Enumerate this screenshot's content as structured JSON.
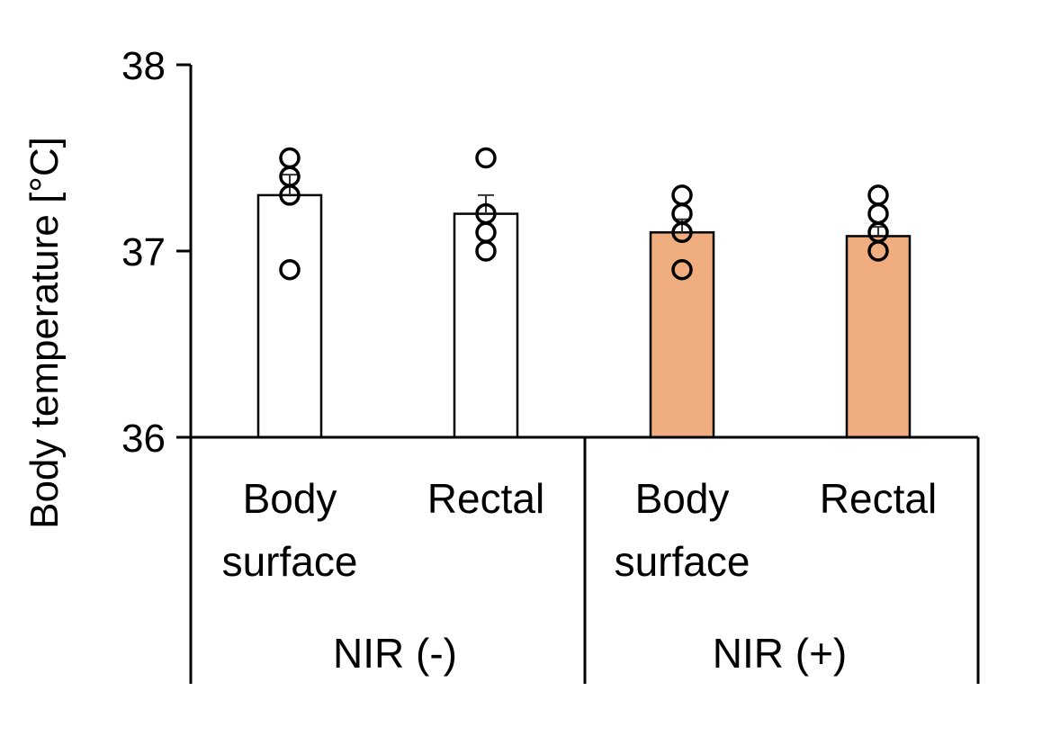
{
  "chart_data": {
    "type": "bar",
    "title": "",
    "ylabel": "Body temperature [°C]",
    "ylim": [
      36,
      38
    ],
    "yticks": [
      "36",
      "37",
      "38"
    ],
    "grid": false,
    "groups": [
      {
        "label": "NIR (-)",
        "categories": [
          {
            "lines": [
              "Body",
              "surface"
            ],
            "value": 37.3,
            "error": 0.11,
            "points": [
              37.5,
              37.4,
              37.3,
              36.9
            ],
            "color": "#ffffff"
          },
          {
            "lines": [
              "Rectal"
            ],
            "value": 37.2,
            "error": 0.1,
            "points": [
              37.5,
              37.2,
              37.1,
              37.0
            ],
            "color": "#ffffff"
          }
        ]
      },
      {
        "label": "NIR (+)",
        "categories": [
          {
            "lines": [
              "Body",
              "surface"
            ],
            "value": 37.1,
            "error": 0.07,
            "points": [
              37.3,
              37.2,
              37.1,
              36.9
            ],
            "color": "#f0ad80"
          },
          {
            "lines": [
              "Rectal"
            ],
            "value": 37.08,
            "error": 0.05,
            "points": [
              37.3,
              37.2,
              37.1,
              37.0
            ],
            "color": "#f0ad80"
          }
        ]
      }
    ]
  }
}
